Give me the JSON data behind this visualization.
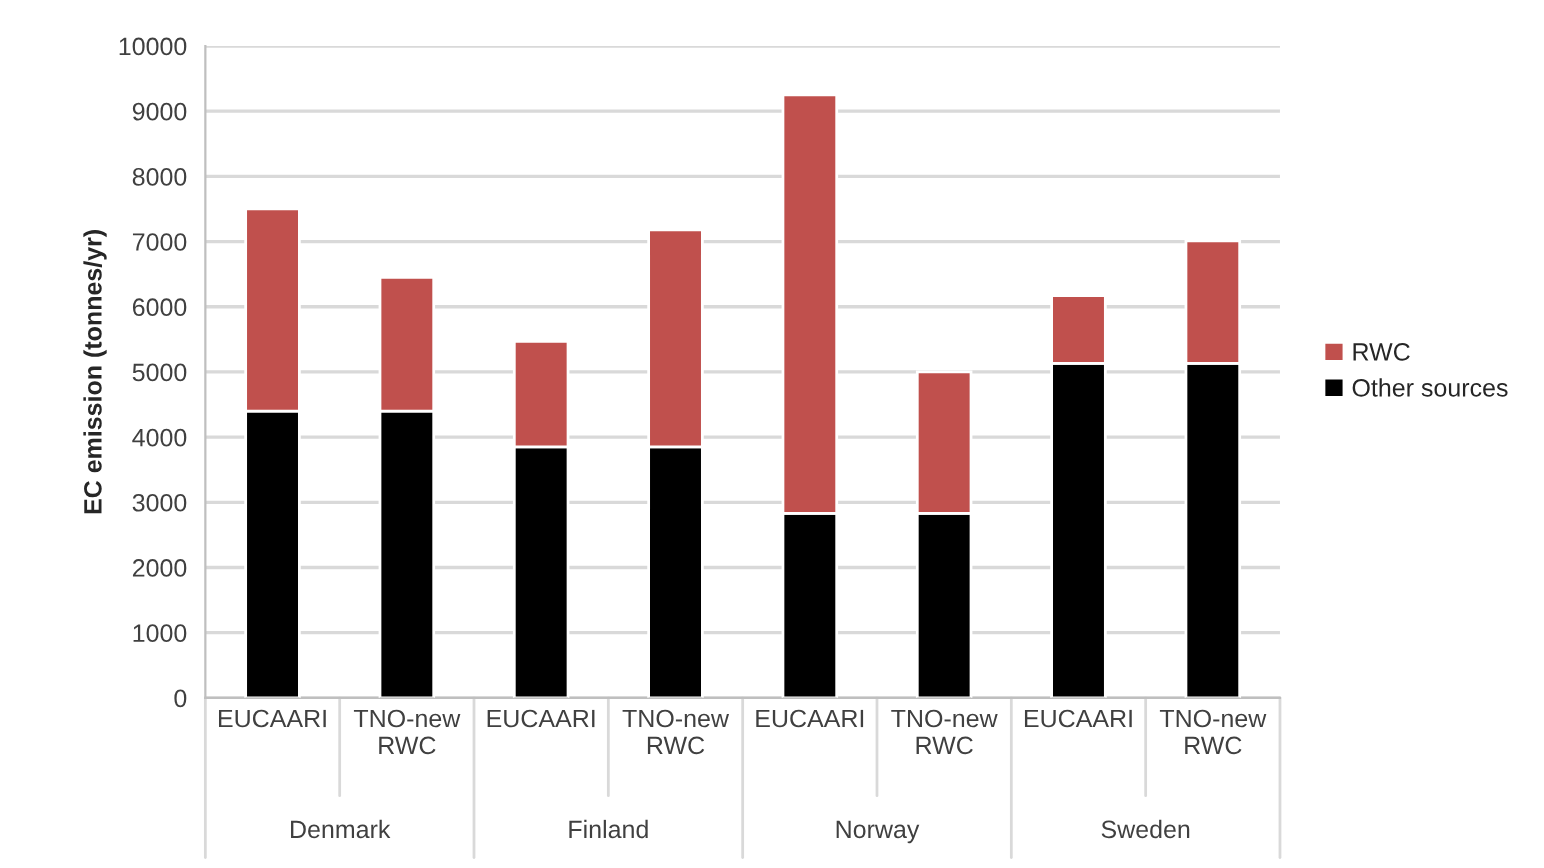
{
  "chart_data": {
    "type": "bar",
    "stacked": true,
    "ylabel": "EC emission (tonnes/yr)",
    "categories": [
      "EUCAARI",
      "TNO-new RWC",
      "EUCAARI",
      "TNO-new RWC",
      "EUCAARI",
      "TNO-new RWC",
      "EUCAARI",
      "TNO-new RWC"
    ],
    "series": [
      {
        "name": "Other sources",
        "color": "#000000",
        "values": [
          4400,
          4400,
          3850,
          3850,
          2830,
          2830,
          5130,
          5130
        ]
      },
      {
        "name": "RWC",
        "color": "#c0504d",
        "values": [
          3100,
          2050,
          1620,
          3330,
          6420,
          2170,
          1040,
          1880
        ]
      }
    ],
    "annotations": [
      "Denmark",
      "Finland",
      "Norway",
      "Sweden"
    ],
    "ylim": [
      0,
      10000
    ],
    "yticks": [
      0,
      1000,
      2000,
      3000,
      4000,
      5000,
      6000,
      7000,
      8000,
      9000,
      10000
    ],
    "grid": "y",
    "legend": "right"
  }
}
